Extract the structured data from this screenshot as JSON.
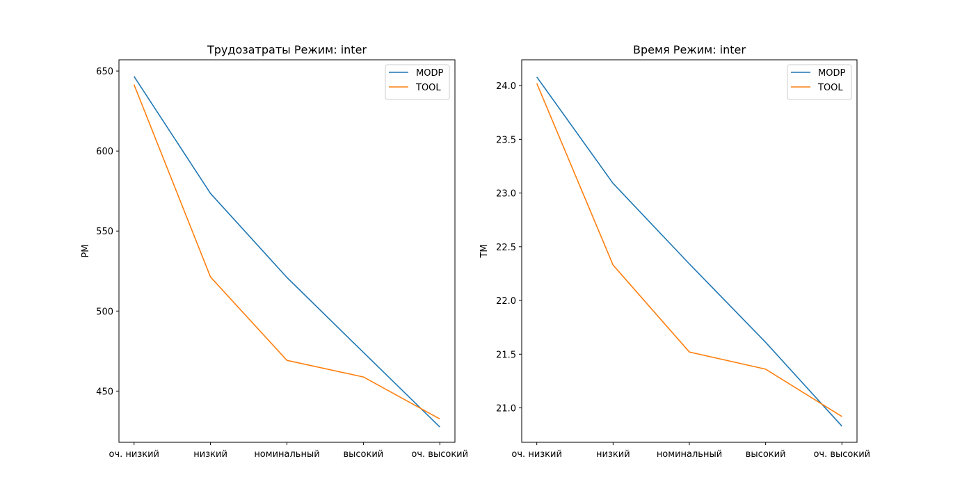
{
  "chart_data": [
    {
      "type": "line",
      "title": "Трудозатраты Режим: inter",
      "xlabel": "",
      "ylabel": "PM",
      "categories": [
        "оч. низкий",
        "низкий",
        "номинальный",
        "высокий",
        "оч. высокий"
      ],
      "yticks": [
        "450",
        "500",
        "550",
        "600",
        "650"
      ],
      "ylim": [
        418,
        657
      ],
      "grid": false,
      "legend_position": "top-right",
      "series": [
        {
          "name": "MODP",
          "color": "#1f77b4",
          "values": [
            646.6,
            573.5,
            521.0,
            474.2,
            427.5
          ]
        },
        {
          "name": "TOOL",
          "color": "#ff7f0e",
          "values": [
            641.5,
            521.3,
            469.2,
            458.8,
            432.6
          ]
        }
      ]
    },
    {
      "type": "line",
      "title": "Время Режим: inter",
      "xlabel": "",
      "ylabel": "TM",
      "categories": [
        "оч. низкий",
        "низкий",
        "номинальный",
        "высокий",
        "оч. высокий"
      ],
      "yticks": [
        "21.0",
        "21.5",
        "22.0",
        "22.5",
        "23.0",
        "23.5",
        "24.0"
      ],
      "ylim": [
        20.68,
        24.24
      ],
      "grid": false,
      "legend_position": "top-right",
      "series": [
        {
          "name": "MODP",
          "color": "#1f77b4",
          "values": [
            24.08,
            23.09,
            22.34,
            21.61,
            20.83
          ]
        },
        {
          "name": "TOOL",
          "color": "#ff7f0e",
          "values": [
            24.02,
            22.33,
            21.52,
            21.36,
            20.92
          ]
        }
      ]
    }
  ]
}
